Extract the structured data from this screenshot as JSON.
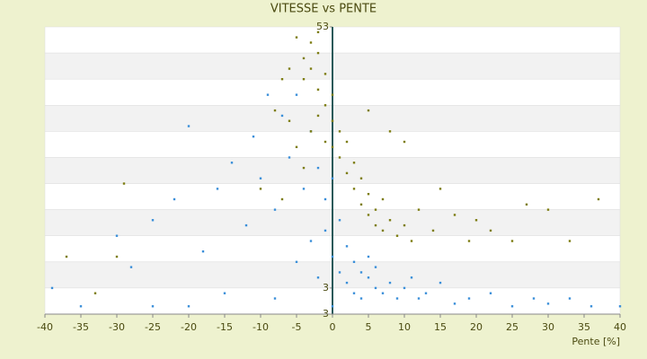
{
  "chart_data": {
    "type": "scatter",
    "title": "VITESSE vs PENTE",
    "xlabel": "Pente [%]",
    "xlim": [
      -40,
      40
    ],
    "xticks": [
      -40,
      -35,
      -30,
      -25,
      -20,
      -15,
      -10,
      -5,
      0,
      5,
      10,
      15,
      20,
      25,
      30,
      35,
      40
    ],
    "ylim": [
      -2,
      53
    ],
    "yticks": [
      53,
      3
    ],
    "annotations": [
      "3"
    ],
    "series": [
      {
        "color": "#3a8fd9",
        "x": [
          -39,
          -35,
          -30,
          -28,
          -25,
          -22,
          -20,
          -18,
          -16,
          -15,
          -14,
          -12,
          -11,
          -10,
          -9,
          -8,
          -7,
          -6,
          -5,
          -5,
          -4,
          -3,
          -3,
          -2,
          -2,
          -1,
          -1,
          0,
          0,
          0,
          1,
          1,
          2,
          2,
          3,
          3,
          4,
          4,
          5,
          5,
          6,
          6,
          7,
          8,
          9,
          10,
          11,
          12,
          13,
          15,
          17,
          19,
          22,
          25,
          28,
          30,
          33,
          36,
          40,
          -20,
          -25,
          -8
        ],
        "values": [
          3,
          -0.5,
          13,
          7,
          16,
          20,
          34,
          10,
          22,
          2,
          27,
          15,
          32,
          24,
          40,
          18,
          36,
          28,
          8,
          40,
          22,
          33,
          12,
          26,
          5,
          20,
          14,
          24,
          9,
          -0.5,
          16,
          6,
          11,
          4,
          8,
          2,
          6,
          1,
          5,
          9,
          3,
          7,
          2,
          4,
          1,
          3,
          5,
          1,
          2,
          4,
          0,
          1,
          2,
          -0.5,
          1,
          0,
          1,
          -0.5,
          -0.5,
          -0.5,
          -0.5,
          1
        ]
      },
      {
        "color": "#7d7d12",
        "x": [
          -5,
          -4,
          -4,
          -3,
          -3,
          -2,
          -2,
          -1,
          -1,
          0,
          0,
          0,
          1,
          1,
          2,
          2,
          3,
          3,
          4,
          4,
          5,
          5,
          6,
          6,
          7,
          7,
          8,
          9,
          10,
          11,
          12,
          14,
          15,
          17,
          19,
          20,
          22,
          25,
          27,
          30,
          33,
          37,
          -6,
          -7,
          -8,
          -6,
          -5,
          -4,
          -3,
          -2,
          -1,
          -30,
          -33,
          -37,
          -29,
          -10,
          -7,
          5,
          8,
          10,
          -2
        ],
        "values": [
          51,
          47,
          43,
          50,
          45,
          41,
          48,
          38,
          44,
          35,
          40,
          30,
          33,
          28,
          31,
          25,
          27,
          22,
          24,
          19,
          21,
          17,
          18,
          15,
          20,
          14,
          16,
          13,
          15,
          12,
          18,
          14,
          22,
          17,
          12,
          16,
          14,
          12,
          19,
          18,
          12,
          20,
          45,
          43,
          37,
          35,
          30,
          26,
          33,
          36,
          31,
          9,
          2,
          9,
          23,
          22,
          20,
          37,
          33,
          31,
          52
        ]
      }
    ]
  }
}
